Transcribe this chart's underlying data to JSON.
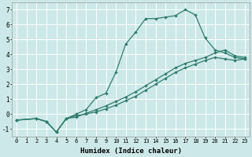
{
  "xlabel": "Humidex (Indice chaleur)",
  "xlim": [
    -0.5,
    23.5
  ],
  "ylim": [
    -1.5,
    7.5
  ],
  "xticks": [
    0,
    1,
    2,
    3,
    4,
    5,
    6,
    7,
    8,
    9,
    10,
    11,
    12,
    13,
    14,
    15,
    16,
    17,
    18,
    19,
    20,
    21,
    22,
    23
  ],
  "yticks": [
    -1,
    0,
    1,
    2,
    3,
    4,
    5,
    6,
    7
  ],
  "bg_color": "#cde8e8",
  "line_color": "#2e7d6e",
  "line1_x": [
    0,
    2,
    3,
    4,
    5,
    6,
    7,
    8,
    9,
    10,
    11,
    12,
    13,
    14,
    15,
    16,
    17,
    18,
    19,
    20,
    21,
    22,
    23
  ],
  "line1_y": [
    -0.4,
    -0.3,
    -0.5,
    -1.2,
    -0.3,
    0.0,
    0.3,
    1.1,
    1.4,
    2.8,
    4.7,
    5.5,
    6.4,
    6.4,
    6.5,
    6.6,
    7.0,
    6.65,
    5.1,
    4.3,
    4.1,
    3.8,
    3.7
  ],
  "line2_x": [
    0,
    2,
    3,
    4,
    5,
    6,
    7,
    8,
    9,
    10,
    11,
    12,
    13,
    14,
    15,
    16,
    17,
    18,
    19,
    20,
    21,
    22,
    23
  ],
  "line2_y": [
    -0.4,
    -0.3,
    -0.5,
    -1.2,
    -0.3,
    -0.1,
    0.0,
    0.15,
    0.35,
    0.6,
    0.9,
    1.2,
    1.6,
    2.0,
    2.4,
    2.8,
    3.1,
    3.35,
    3.6,
    3.8,
    3.7,
    3.6,
    3.7
  ],
  "line3_x": [
    0,
    2,
    3,
    4,
    5,
    6,
    7,
    8,
    9,
    10,
    11,
    12,
    13,
    14,
    15,
    16,
    17,
    18,
    19,
    20,
    21,
    22,
    23
  ],
  "line3_y": [
    -0.4,
    -0.3,
    -0.5,
    -1.2,
    -0.3,
    -0.2,
    0.05,
    0.3,
    0.55,
    0.85,
    1.15,
    1.5,
    1.9,
    2.3,
    2.7,
    3.1,
    3.4,
    3.6,
    3.8,
    4.1,
    4.3,
    3.9,
    3.8
  ]
}
